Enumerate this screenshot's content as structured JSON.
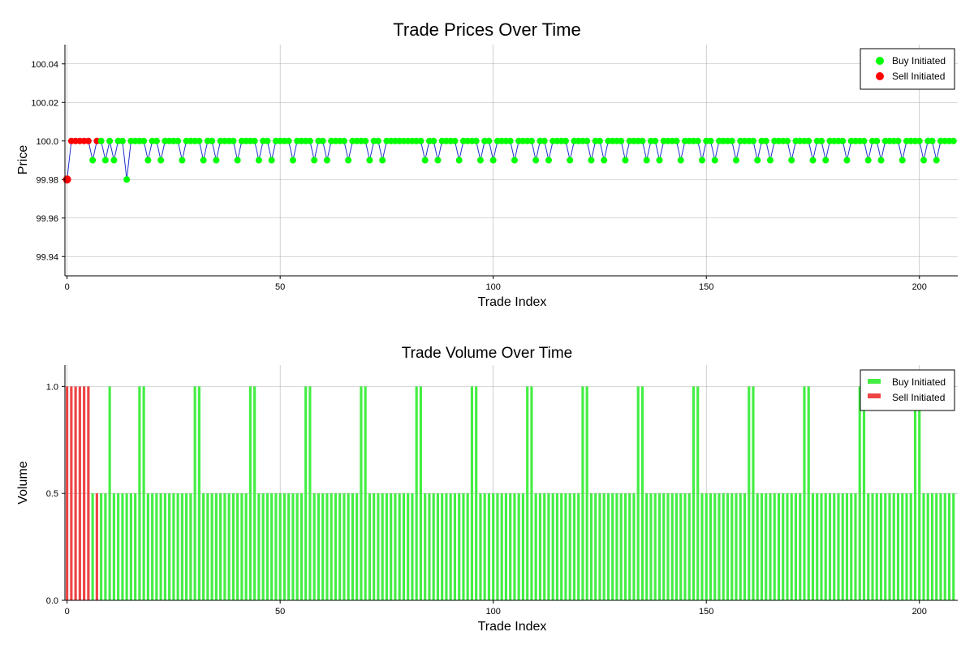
{
  "colors": {
    "buy": "#00ff00",
    "sell": "#ff0000",
    "line": "#1f2fd0",
    "bar_buy": "#44ee44",
    "bar_sell": "#ee4444",
    "grid": "#b0b0b0"
  },
  "chart_data": [
    {
      "type": "line",
      "title": "Trade Prices Over Time",
      "xlabel": "Trade Index",
      "ylabel": "Price",
      "xlim": [
        -0.5,
        209
      ],
      "ylim": [
        99.93,
        100.05
      ],
      "xticks": [
        0,
        50,
        100,
        150,
        200
      ],
      "xtick_labels": [
        "0",
        "50",
        "100",
        "150",
        "200"
      ],
      "yticks": [
        99.94,
        99.96,
        99.98,
        100.0,
        100.02,
        100.04
      ],
      "ytick_labels": [
        "99.94",
        "99.96",
        "99.98",
        "100.0",
        "100.02",
        "100.04"
      ],
      "grid": true,
      "legend_position": "top-right",
      "series": [
        {
          "name": "Buy Initiated",
          "marker": "circle"
        },
        {
          "name": "Sell Initiated",
          "marker": "circle"
        }
      ],
      "x_count": 209,
      "y_default": 100.0,
      "y_overrides": {
        "0": 99.98,
        "6": 99.99,
        "9": 99.99,
        "11": 99.99,
        "14": 99.98,
        "19": 99.99,
        "22": 99.99,
        "27": 99.99,
        "32": 99.99,
        "35": 99.99,
        "40": 99.99,
        "45": 99.99,
        "48": 99.99,
        "53": 99.99,
        "58": 99.99,
        "61": 99.99,
        "66": 99.99,
        "71": 99.99,
        "74": 99.99,
        "84": 99.99,
        "87": 99.99,
        "92": 99.99,
        "97": 99.99,
        "100": 99.99,
        "105": 99.99,
        "110": 99.99,
        "113": 99.99,
        "118": 99.99,
        "123": 99.99,
        "126": 99.99,
        "131": 99.99,
        "136": 99.99,
        "139": 99.99,
        "144": 99.99,
        "149": 99.99,
        "152": 99.99,
        "157": 99.99,
        "162": 99.99,
        "165": 99.99,
        "170": 99.99,
        "175": 99.99,
        "178": 99.99,
        "183": 99.99,
        "188": 99.99,
        "191": 99.99,
        "196": 99.99,
        "201": 99.99,
        "204": 99.99
      },
      "sell_indices": [
        0,
        1,
        2,
        3,
        4,
        5,
        7
      ]
    },
    {
      "type": "bar",
      "title": "Trade Volume Over Time",
      "xlabel": "Trade Index",
      "ylabel": "Volume",
      "xlim": [
        -0.5,
        209
      ],
      "ylim": [
        0,
        1.1
      ],
      "xticks": [
        0,
        50,
        100,
        150,
        200
      ],
      "xtick_labels": [
        "0",
        "50",
        "100",
        "150",
        "200"
      ],
      "yticks": [
        0.0,
        0.5,
        1.0
      ],
      "ytick_labels": [
        "0.0",
        "0.5",
        "1.0"
      ],
      "grid": true,
      "legend_position": "top-right",
      "series": [
        {
          "name": "Buy Initiated"
        },
        {
          "name": "Sell Initiated"
        }
      ],
      "x_count": 209,
      "v_default": 0.5,
      "v_overrides": {
        "0": 1.0,
        "1": 1.0,
        "2": 1.0,
        "3": 1.0,
        "4": 1.0,
        "5": 1.0,
        "10": 1.0,
        "17": 1.0,
        "18": 1.0,
        "30": 1.0,
        "31": 1.0,
        "43": 1.0,
        "44": 1.0,
        "56": 1.0,
        "57": 1.0,
        "69": 1.0,
        "70": 1.0,
        "82": 1.0,
        "83": 1.0,
        "95": 1.0,
        "96": 1.0,
        "108": 1.0,
        "109": 1.0,
        "121": 1.0,
        "122": 1.0,
        "134": 1.0,
        "135": 1.0,
        "147": 1.0,
        "148": 1.0,
        "160": 1.0,
        "161": 1.0,
        "173": 1.0,
        "174": 1.0,
        "186": 1.0,
        "187": 1.0,
        "199": 1.0,
        "200": 1.0
      },
      "sell_indices": [
        0,
        1,
        2,
        3,
        4,
        5,
        7
      ]
    }
  ]
}
